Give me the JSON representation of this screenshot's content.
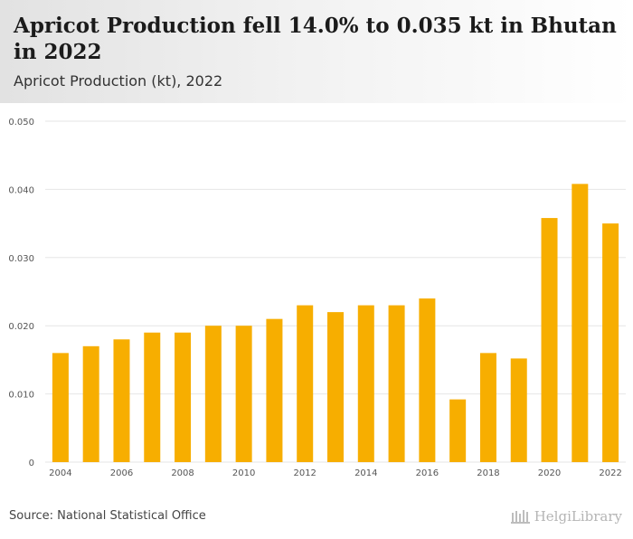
{
  "header": {
    "title": "Apricot Production fell 14.0% to 0.035 kt in Bhutan in 2022",
    "subtitle": "Apricot Production (kt), 2022"
  },
  "footer": {
    "source": "Source: National Statistical Office",
    "brand": "HelgiLibrary"
  },
  "colors": {
    "bar": "#f7ae00",
    "grid": "#e6e6e6",
    "tick_text": "#555555"
  },
  "chart_data": {
    "type": "bar",
    "title": "Apricot Production fell 14.0% to 0.035 kt in Bhutan in 2022",
    "subtitle": "Apricot Production (kt), 2022",
    "categories": [
      "2004",
      "2005",
      "2006",
      "2007",
      "2008",
      "2009",
      "2010",
      "2011",
      "2012",
      "2013",
      "2014",
      "2015",
      "2016",
      "2017",
      "2018",
      "2019",
      "2020",
      "2021",
      "2022"
    ],
    "x_tick_labels": [
      "2004",
      "2006",
      "2008",
      "2010",
      "2012",
      "2014",
      "2016",
      "2018",
      "2020",
      "2022"
    ],
    "values": [
      0.016,
      0.017,
      0.018,
      0.019,
      0.019,
      0.02,
      0.02,
      0.021,
      0.023,
      0.022,
      0.023,
      0.023,
      0.024,
      0.0092,
      0.016,
      0.0152,
      0.0358,
      0.0408,
      0.035
    ],
    "y_ticks": [
      "0",
      "0.010",
      "0.020",
      "0.030",
      "0.040",
      "0.050"
    ],
    "y_tick_values": [
      0,
      0.01,
      0.02,
      0.03,
      0.04,
      0.05
    ],
    "ylim": [
      0,
      0.05
    ],
    "xlabel": "",
    "ylabel": "",
    "grid": true
  }
}
